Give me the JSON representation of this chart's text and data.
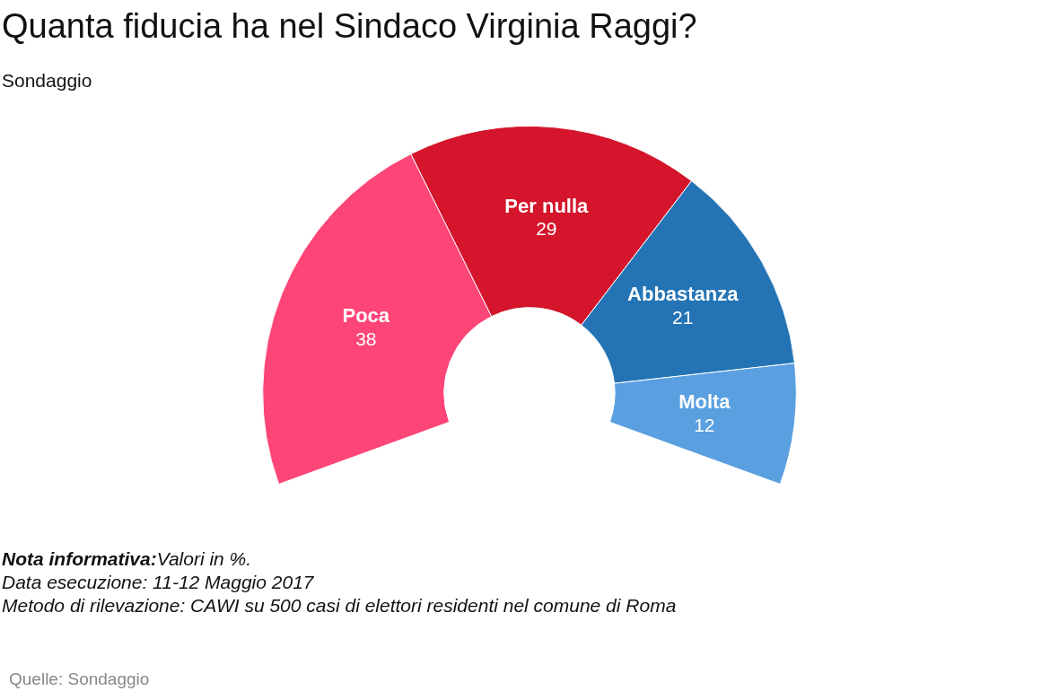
{
  "chart_data": {
    "type": "donut",
    "title": "Quanta fiducia ha nel Sindaco Virginia Raggi?",
    "subtitle": "Sondaggio",
    "categories": [
      "Poca",
      "Per nulla",
      "Abbastanza",
      "Molta"
    ],
    "values": [
      38,
      29,
      21,
      12
    ],
    "colors": [
      "#fd4577",
      "#d4152b",
      "#2474b5",
      "#5a9fe0"
    ],
    "data_labels": true,
    "legend": false,
    "annotations": [
      "Nota informativa:Valori in %.",
      "Data esecuzione: 11-12 Maggio 2017",
      "Metodo di rilevazione: CAWI su 500 casi di elettori residenti nel comune di Roma",
      "Quelle: Sondaggio"
    ]
  }
}
